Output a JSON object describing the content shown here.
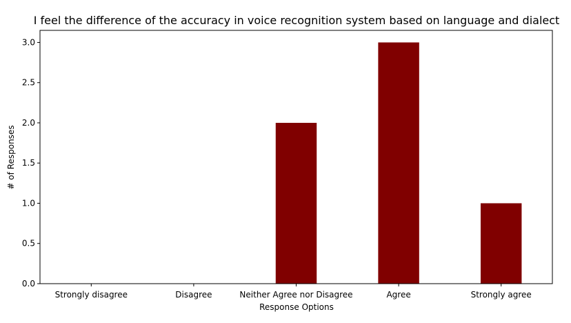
{
  "chart_data": {
    "type": "bar",
    "title": "I feel the difference of the accuracy in voice recognition system based on language and dialect",
    "xlabel": "Response Options",
    "ylabel": "# of Responses",
    "categories": [
      "Strongly disagree",
      "Disagree",
      "Neither Agree nor Disagree",
      "Agree",
      "Strongly agree"
    ],
    "values": [
      0,
      0,
      2,
      3,
      1
    ],
    "ylim": [
      0,
      3.15
    ],
    "yticks": [
      "0.0",
      "0.5",
      "1.0",
      "1.5",
      "2.0",
      "2.5",
      "3.0"
    ],
    "bar_color": "#800000",
    "grid": false,
    "legend": "none"
  }
}
